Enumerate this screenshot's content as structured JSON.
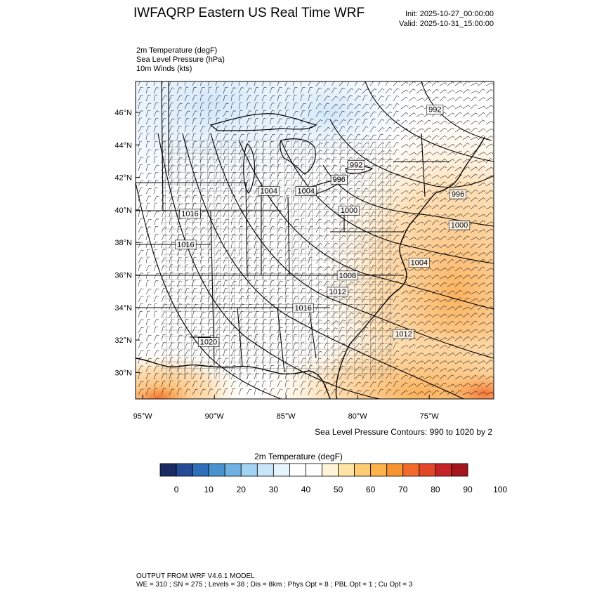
{
  "header": {
    "title": "IWFAQRP Eastern US Real Time WRF",
    "init": "Init: 2025-10-27_00:00:00",
    "valid": "Valid: 2025-10-31_15:00:00"
  },
  "fields": [
    "2m Temperature   (degF)",
    "Sea Level Pressure   (hPa)",
    "10m Winds   (kts)"
  ],
  "map": {
    "lat_ticks": [
      "46°N",
      "44°N",
      "42°N",
      "40°N",
      "38°N",
      "36°N",
      "34°N",
      "32°N",
      "30°N"
    ],
    "lon_ticks": [
      "95°W",
      "90°W",
      "85°W",
      "80°W",
      "75°W"
    ],
    "isobar_labels": [
      {
        "text": "992",
        "lon": -74.6,
        "lat": 46.1
      },
      {
        "text": "992",
        "lon": -80.1,
        "lat": 42.7
      },
      {
        "text": "996",
        "lon": -81.3,
        "lat": 41.8
      },
      {
        "text": "996",
        "lon": -73.0,
        "lat": 40.9
      },
      {
        "text": "1000",
        "lon": -80.6,
        "lat": 39.9
      },
      {
        "text": "1000",
        "lon": -72.9,
        "lat": 39.0
      },
      {
        "text": "1004",
        "lon": -86.2,
        "lat": 41.1
      },
      {
        "text": "1004",
        "lon": -83.6,
        "lat": 41.1
      },
      {
        "text": "1004",
        "lon": -75.7,
        "lat": 36.7
      },
      {
        "text": "1008",
        "lon": -80.7,
        "lat": 35.9
      },
      {
        "text": "1012",
        "lon": -81.4,
        "lat": 34.9
      },
      {
        "text": "1012",
        "lon": -76.8,
        "lat": 32.3
      },
      {
        "text": "1016",
        "lon": -91.7,
        "lat": 39.7
      },
      {
        "text": "1016",
        "lon": -92.0,
        "lat": 37.8
      },
      {
        "text": "1016",
        "lon": -83.8,
        "lat": 33.9
      },
      {
        "text": "1020",
        "lon": -90.4,
        "lat": 31.8
      }
    ],
    "colors": {
      "cold": "#d4e9fb",
      "neutral": "#ffffff",
      "warm": "#fdb24a",
      "land_lines": "#000000"
    }
  },
  "contour_note": "Sea Level Pressure Contours: 990 to 1020 by 2",
  "colorbar": {
    "title": "2m Temperature  (degF)",
    "colors": [
      "#1b2a63",
      "#254b96",
      "#2d6fb8",
      "#4a92cf",
      "#6fb1e0",
      "#a3d3f2",
      "#c9e6f9",
      "#e7f4fd",
      "#ffffff",
      "#ffffff",
      "#fff4d6",
      "#ffe4a6",
      "#fdcc72",
      "#fdb24a",
      "#f99433",
      "#f26a2c",
      "#e3472a",
      "#c52326",
      "#a3171c"
    ],
    "labels": [
      "0",
      "10",
      "20",
      "30",
      "40",
      "50",
      "60",
      "70",
      "80",
      "90",
      "100"
    ]
  },
  "footer": {
    "line1": "OUTPUT FROM WRF V4.6.1 MODEL",
    "line2": "WE = 310 ; SN = 275 ; Levels = 38 ; Dis = 8km ; Phys Opt = 8 ; PBL Opt = 1 ; Cu Opt = 3"
  }
}
